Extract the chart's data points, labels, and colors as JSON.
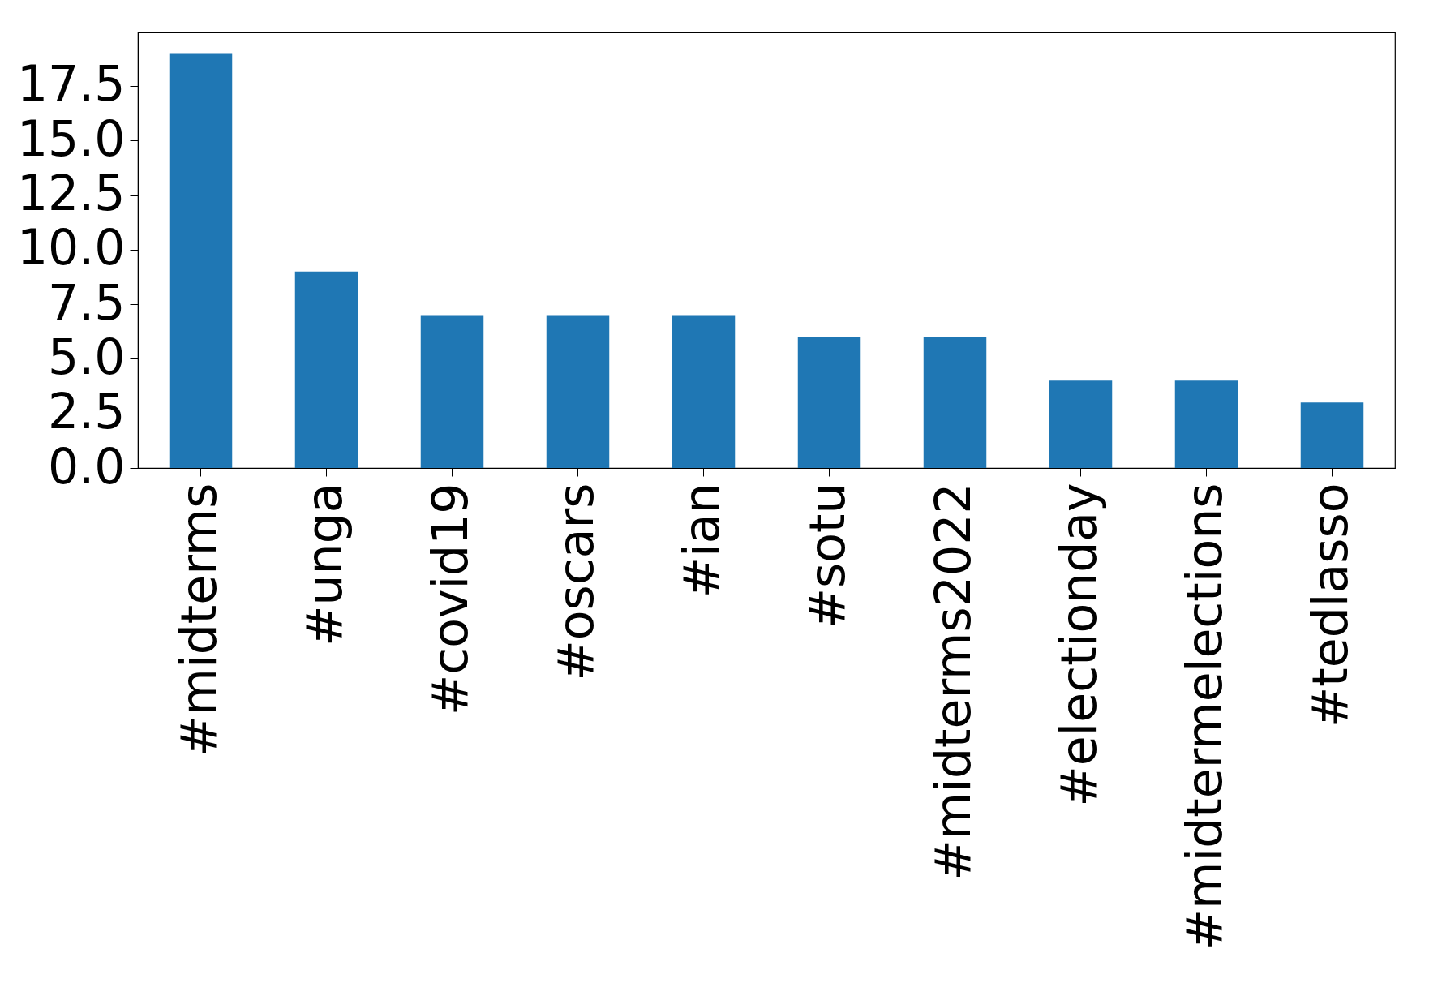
{
  "chart_data": {
    "type": "bar",
    "categories": [
      "#midterms",
      "#unga",
      "#covid19",
      "#oscars",
      "#ian",
      "#sotu",
      "#midterms2022",
      "#electionday",
      "#midtermelections",
      "#tedlasso"
    ],
    "values": [
      19,
      9,
      7,
      7,
      7,
      6,
      6,
      4,
      4,
      3
    ],
    "color": "#1f77b4",
    "ylim": [
      0,
      19.95
    ],
    "yticks": [
      {
        "value": 0,
        "label": "0.0"
      },
      2.5,
      {
        "value": 5,
        "label": "5.0"
      },
      7.5,
      {
        "value": 10,
        "label": "10.0"
      },
      12.5,
      {
        "value": 15,
        "label": "15.0"
      },
      17.5
    ],
    "grid": false
  }
}
